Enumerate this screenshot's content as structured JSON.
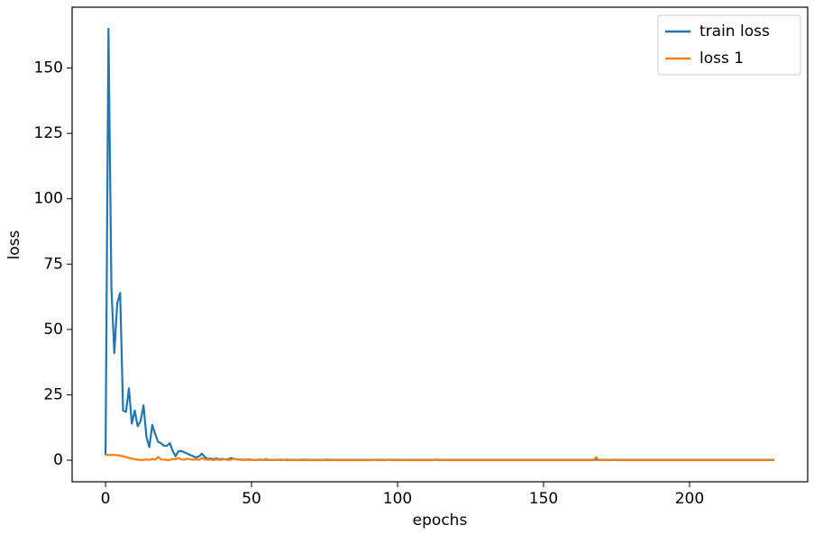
{
  "chart_data": {
    "type": "line",
    "xlabel": "epochs",
    "ylabel": "loss",
    "xlim": [
      -11.45,
      240.45
    ],
    "ylim": [
      -8.25,
      173.25
    ],
    "xticks": [
      0,
      50,
      100,
      150,
      200
    ],
    "yticks": [
      0,
      25,
      50,
      75,
      100,
      125,
      150
    ],
    "legend": "upper right",
    "x": [
      0,
      1,
      2,
      3,
      4,
      5,
      6,
      7,
      8,
      9,
      10,
      11,
      12,
      13,
      14,
      15,
      16,
      17,
      18,
      19,
      20,
      21,
      22,
      23,
      24,
      25,
      26,
      27,
      28,
      29,
      30,
      31,
      32,
      33,
      34,
      35,
      36,
      37,
      38,
      39,
      40,
      41,
      42,
      43,
      44,
      45,
      46,
      47,
      48,
      49,
      50,
      51,
      52,
      53,
      54,
      55,
      56,
      57,
      58,
      59,
      60,
      61,
      62,
      63,
      64,
      65,
      66,
      67,
      68,
      69,
      70,
      71,
      72,
      73,
      74,
      75,
      76,
      77,
      78,
      79,
      80,
      81,
      82,
      83,
      84,
      85,
      86,
      87,
      88,
      89,
      90,
      91,
      92,
      93,
      94,
      95,
      96,
      97,
      98,
      99,
      100,
      101,
      102,
      103,
      104,
      105,
      106,
      107,
      108,
      109,
      110,
      111,
      112,
      113,
      114,
      115,
      116,
      117,
      118,
      119,
      120,
      121,
      122,
      123,
      124,
      125,
      126,
      127,
      128,
      129,
      130,
      131,
      132,
      133,
      134,
      135,
      136,
      137,
      138,
      139,
      140,
      141,
      142,
      143,
      144,
      145,
      146,
      147,
      148,
      149,
      150,
      151,
      152,
      153,
      154,
      155,
      156,
      157,
      158,
      159,
      160,
      161,
      162,
      163,
      164,
      165,
      166,
      167,
      168,
      169,
      170,
      171,
      172,
      173,
      174,
      175,
      176,
      177,
      178,
      179,
      180,
      181,
      182,
      183,
      184,
      185,
      186,
      187,
      188,
      189,
      190,
      191,
      192,
      193,
      194,
      195,
      196,
      197,
      198,
      199,
      200,
      201,
      202,
      203,
      204,
      205,
      206,
      207,
      208,
      209,
      210,
      211,
      212,
      213,
      214,
      215,
      216,
      217,
      218,
      219,
      220,
      221,
      222,
      223,
      224,
      225,
      226,
      227,
      228,
      229
    ],
    "series": [
      {
        "name": "train loss",
        "color": "#1f77b4",
        "values": [
          2,
          165,
          66,
          41,
          60,
          64,
          19,
          18.5,
          27.5,
          14,
          19,
          13,
          15,
          21,
          9,
          5,
          13.5,
          10,
          7,
          6.5,
          5.5,
          5.5,
          6.5,
          3.5,
          1.5,
          3.5,
          3.5,
          3,
          2.5,
          2,
          1.5,
          1,
          1.5,
          2.5,
          1.2,
          0.5,
          0.6,
          0.4,
          0.7,
          0.3,
          0.5,
          0.3,
          0.4,
          0.8,
          0.5,
          0.3,
          0.3,
          0.2,
          0.2,
          0.3,
          0.2,
          0.1,
          0.1,
          0.3,
          0.1,
          0.2,
          0.1,
          0.1,
          0.1,
          0.2,
          0.1,
          0.1,
          0.2,
          0.1,
          0.1,
          0.1,
          0.1,
          0.1,
          0.2,
          0.1,
          0.1,
          0.1,
          0.1,
          0.1,
          0.1,
          0.1,
          0.2,
          0.1,
          0.1,
          0.1,
          0.1,
          0.1,
          0.1,
          0.1,
          0.1,
          0.1,
          0.1,
          0.1,
          0.1,
          0.1,
          0.1,
          0.1,
          0.2,
          0.1,
          0.1,
          0.1,
          0.1,
          0.2,
          0.1,
          0.1,
          0.1,
          0.1,
          0.1,
          0.1,
          0.1,
          0.1,
          0.1,
          0.1,
          0.1,
          0.1,
          0.1,
          0.1,
          0.1,
          0.2,
          0.1,
          0.1,
          0.1,
          0.1,
          0.1,
          0.1,
          0.1,
          0.1,
          0.1,
          0.1,
          0.1,
          0.1,
          0.1,
          0.1,
          0.1,
          0.1,
          0.1,
          0.1,
          0.1,
          0.1,
          0.1,
          0.1,
          0.1,
          0.1,
          0.1,
          0.1,
          0.1,
          0.1,
          0.1,
          0.1,
          0.1,
          0.1,
          0.1,
          0.1,
          0.1,
          0.1,
          0.1,
          0.1,
          0.1,
          0.1,
          0.1,
          0.1,
          0.1,
          0.1,
          0.1,
          0.1,
          0.1,
          0.1,
          0.1,
          0.1,
          0.1,
          0.1,
          0.1,
          0.1,
          0.2,
          0.1,
          0.1,
          0.1,
          0.1,
          0.1,
          0.1,
          0.1,
          0.1,
          0.1,
          0.1,
          0.1,
          0.1,
          0.1,
          0.1,
          0.1,
          0.1,
          0.1,
          0.1,
          0.1,
          0.1,
          0.1,
          0.1,
          0.1,
          0.1,
          0.1,
          0.1,
          0.1,
          0.1,
          0.1,
          0.1,
          0.1,
          0.1,
          0.1,
          0.1,
          0.1,
          0.1,
          0.1,
          0.1,
          0.1,
          0.1,
          0.1,
          0.1,
          0.1,
          0.1,
          0.1,
          0.1,
          0.1,
          0.1,
          0.1,
          0.1,
          0.1,
          0.1,
          0.1,
          0.1,
          0.1,
          0.1,
          0.1,
          0.1,
          0.1,
          0.1,
          0.1
        ]
      },
      {
        "name": "loss 1",
        "color": "#ff7f0e",
        "values": [
          2,
          2,
          2,
          2,
          1.9,
          1.7,
          1.5,
          1.2,
          0.9,
          0.6,
          0.4,
          0.2,
          0.1,
          0.1,
          0.3,
          0.1,
          0.5,
          0.2,
          1.2,
          0.3,
          0.2,
          0.1,
          0.1,
          0.5,
          0.4,
          0.8,
          0.3,
          0.2,
          0.6,
          0.3,
          0.2,
          0.4,
          0.1,
          0.9,
          0.3,
          0.2,
          0.2,
          0.1,
          0.3,
          0.1,
          0.2,
          0.4,
          0.1,
          0.2,
          0.6,
          0.3,
          0.2,
          0.1,
          0.1,
          0.1,
          0.1,
          0.1,
          0.1,
          0.1,
          0.2,
          0.5,
          0.1,
          0.1,
          0.1,
          0.1,
          0.3,
          0.1,
          0,
          0,
          0,
          0,
          0,
          0,
          0,
          0,
          0,
          0,
          0,
          0,
          0,
          0,
          0,
          0,
          0,
          0,
          0,
          0,
          0,
          0,
          0,
          0,
          0,
          0,
          0,
          0,
          0,
          0,
          0.2,
          0,
          0,
          0,
          0,
          0.2,
          0,
          0,
          0,
          0,
          0,
          0,
          0,
          0,
          0,
          0,
          0,
          0,
          0,
          0,
          0,
          0.2,
          0,
          0,
          0,
          0,
          0,
          0,
          0,
          0,
          0,
          0,
          0,
          0,
          0,
          0,
          0,
          0,
          0,
          0,
          0,
          0,
          0,
          0,
          0,
          0,
          0,
          0,
          0,
          0,
          0,
          0,
          0,
          0,
          0,
          0,
          0,
          0,
          0,
          0,
          0,
          0,
          0,
          0,
          0,
          0,
          0,
          0,
          0,
          0,
          0,
          0,
          0,
          0,
          0,
          0,
          1.1,
          0,
          0,
          0,
          0,
          0,
          0.2,
          0,
          0,
          0,
          0,
          0,
          0,
          0,
          0,
          0,
          0,
          0,
          0,
          0,
          0,
          0,
          0,
          0,
          0,
          0,
          0,
          0,
          0,
          0,
          0,
          0,
          0,
          0,
          0,
          0,
          0,
          0,
          0,
          0,
          0,
          0,
          0,
          0,
          0,
          0,
          0,
          0,
          0,
          0,
          0,
          0,
          0,
          0,
          0,
          0,
          0,
          0,
          0,
          0,
          0,
          0
        ]
      }
    ]
  }
}
